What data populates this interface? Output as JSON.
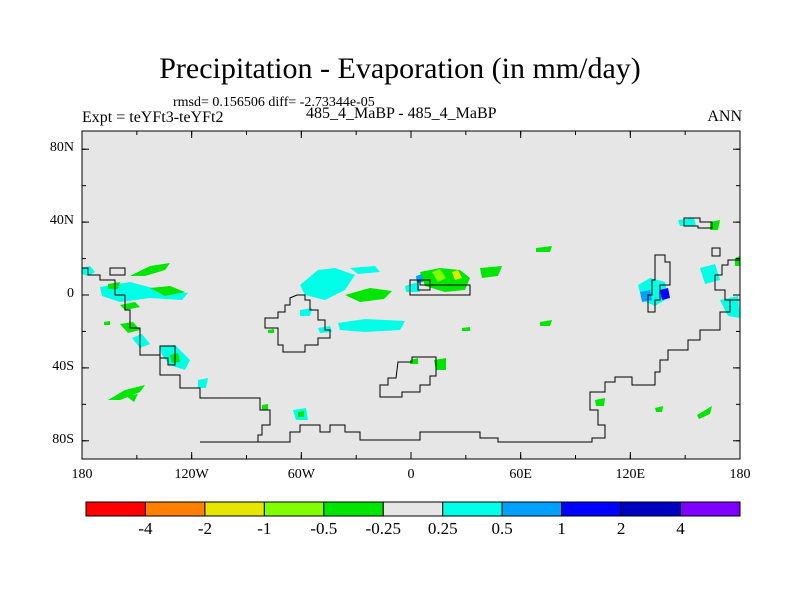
{
  "title": "Precipitation - Evaporation (in mm/day)",
  "stats": "rmsd= 0.156506 diff= -2.73344e-05",
  "expt": "Expt = teYFt3-teYFt2",
  "cases": "485_4_MaBP - 485_4_MaBP",
  "season": "ANN",
  "lat_ticks": [
    {
      "label": "80N",
      "value": 80
    },
    {
      "label": "40N",
      "value": 40
    },
    {
      "label": "0",
      "value": 0
    },
    {
      "label": "40S",
      "value": -40
    },
    {
      "label": "80S",
      "value": -80
    }
  ],
  "lon_ticks": [
    {
      "label": "180",
      "value": -180
    },
    {
      "label": "120W",
      "value": -120
    },
    {
      "label": "60W",
      "value": -60
    },
    {
      "label": "0",
      "value": 0
    },
    {
      "label": "60E",
      "value": 60
    },
    {
      "label": "120E",
      "value": 120
    },
    {
      "label": "180",
      "value": 180
    }
  ],
  "colorbar": {
    "colors": [
      "#ff0000",
      "#ff8000",
      "#e6e600",
      "#80ff00",
      "#00e600",
      "#e6e6e6",
      "#00ffe6",
      "#00a0ff",
      "#0000ff",
      "#0000c0",
      "#8000ff"
    ],
    "labels": [
      "-4",
      "-2",
      "-1",
      "-0.5",
      "-0.25",
      "0.25",
      "0.5",
      "1",
      "2",
      "4"
    ]
  },
  "colors": {
    "ocean": "#e6e6e6",
    "green": "#00e600",
    "lightgreen": "#80ff00",
    "cyan": "#00ffe6",
    "blue": "#00a0ff",
    "darkblue": "#0000ff",
    "yellow": "#e6e600"
  }
}
